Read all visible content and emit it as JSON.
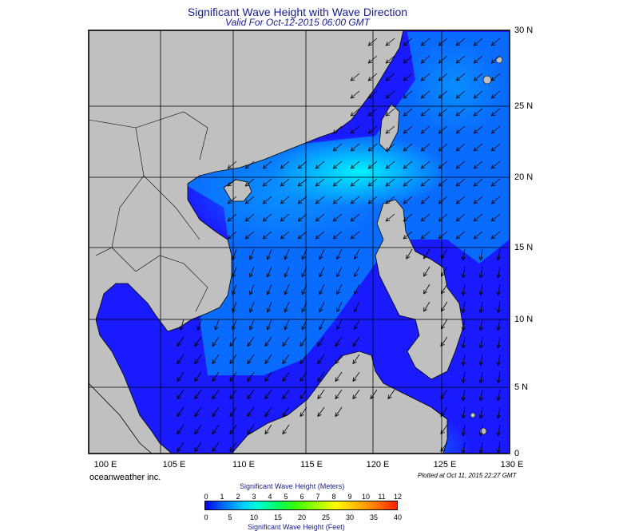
{
  "title": "Significant Wave Height with Wave Direction",
  "subtitle": "Valid For Oct-12-2015 06:00 GMT",
  "credit": "oceanweather inc.",
  "plotted": "Plotted at Oct 11, 2015 22:27 GMT",
  "lon_labels": [
    "100 E",
    "105 E",
    "110 E",
    "115 E",
    "120 E",
    "125 E",
    "130 E"
  ],
  "lat_labels": [
    "30 N",
    "25 N",
    "20 N",
    "15 N",
    "10 N",
    "5 N",
    "0"
  ],
  "scale": {
    "title_m": "Significant Wave Height (Meters)",
    "title_ft": "Significant Wave Height (Feet)",
    "meters": [
      "0",
      "1",
      "2",
      "3",
      "4",
      "5",
      "6",
      "7",
      "8",
      "9",
      "10",
      "11",
      "12"
    ],
    "feet": [
      "0",
      "5",
      "10",
      "15",
      "20",
      "25",
      "30",
      "35",
      "40"
    ]
  },
  "colors": {
    "land": "#c0c0c0",
    "sea_low": "#1a1aff",
    "sea_mid": "#0a7cff",
    "sea_high": "#00f0ff",
    "title": "#1a1a8c"
  }
}
